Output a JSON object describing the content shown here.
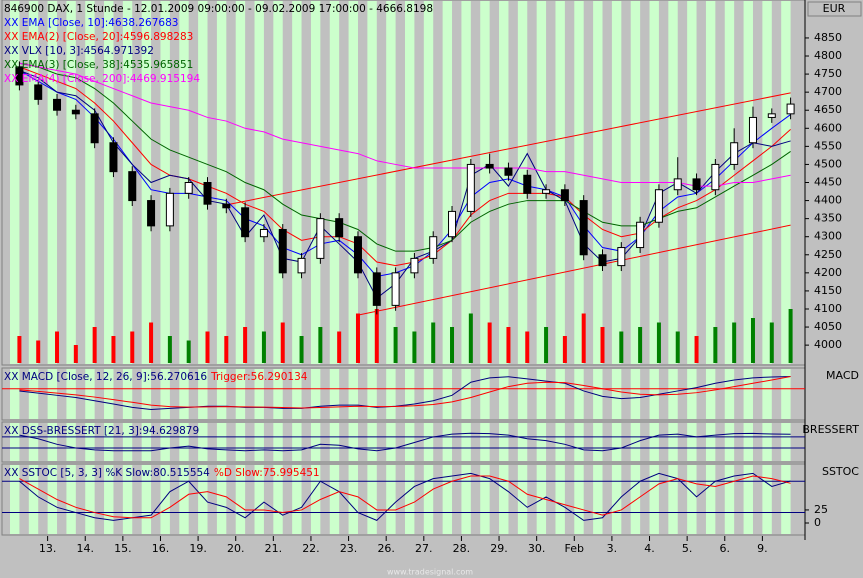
{
  "chart_data": [
    {
      "type": "candlestick",
      "title": "846900  DAX, 1 Stunde - 12.01.2009 09:00:00 - 09.02.2009 17:00:00 - 4666.8198",
      "currency": "EUR",
      "open": [
        4770,
        4720,
        4680,
        4650,
        4640,
        4560,
        4480,
        4400,
        4330,
        4420,
        4450,
        4390,
        4380,
        4300,
        4320,
        4200,
        4240,
        4350,
        4300,
        4200,
        4110,
        4200,
        4240,
        4300,
        4370,
        4500,
        4490,
        4470,
        4420,
        4430,
        4400,
        4250,
        4220,
        4270,
        4340,
        4430,
        4460,
        4430,
        4500,
        4560,
        4630,
        4640
      ],
      "high": [
        4785,
        4735,
        4695,
        4665,
        4655,
        4575,
        4495,
        4415,
        4435,
        4465,
        4465,
        4405,
        4395,
        4335,
        4335,
        4255,
        4365,
        4365,
        4315,
        4215,
        4215,
        4255,
        4315,
        4385,
        4515,
        4530,
        4505,
        4485,
        4445,
        4445,
        4415,
        4265,
        4285,
        4355,
        4445,
        4520,
        4475,
        4515,
        4600,
        4660,
        4655,
        4685
      ],
      "low": [
        4705,
        4665,
        4635,
        4625,
        4545,
        4465,
        4385,
        4315,
        4315,
        4405,
        4375,
        4365,
        4285,
        4285,
        4185,
        4185,
        4225,
        4285,
        4185,
        4085,
        4095,
        4185,
        4225,
        4285,
        4355,
        4475,
        4455,
        4405,
        4405,
        4385,
        4235,
        4205,
        4205,
        4255,
        4325,
        4415,
        4415,
        4415,
        4485,
        4545,
        4615,
        4625
      ],
      "close": [
        4720,
        4680,
        4650,
        4640,
        4560,
        4480,
        4400,
        4330,
        4420,
        4450,
        4390,
        4380,
        4300,
        4320,
        4200,
        4240,
        4350,
        4300,
        4200,
        4110,
        4200,
        4240,
        4300,
        4370,
        4500,
        4490,
        4470,
        4420,
        4430,
        4400,
        4250,
        4220,
        4270,
        4340,
        4430,
        4460,
        4430,
        4500,
        4560,
        4630,
        4640,
        4667
      ],
      "volume": [
        30,
        25,
        35,
        20,
        40,
        30,
        35,
        45,
        30,
        25,
        35,
        30,
        40,
        35,
        45,
        30,
        40,
        35,
        55,
        60,
        40,
        35,
        45,
        40,
        55,
        45,
        40,
        35,
        40,
        30,
        55,
        40,
        35,
        40,
        45,
        35,
        30,
        40,
        45,
        50,
        45,
        60
      ],
      "volume_ylim": [
        0,
        100
      ],
      "up_color": "#ffffff",
      "down_color": "#000000",
      "volume_up_color": "#008000",
      "volume_down_color": "#ff0000",
      "ylim": [
        3945,
        4955
      ],
      "yticks": [
        4000,
        4050,
        4100,
        4150,
        4200,
        4250,
        4300,
        4350,
        4400,
        4450,
        4500,
        4550,
        4600,
        4650,
        4700,
        4750,
        4800,
        4850
      ],
      "series": [
        {
          "name": "XX EMA [Close, 10]:4638.267683",
          "color": "#0000ff",
          "values": [
            4760,
            4730,
            4700,
            4680,
            4630,
            4570,
            4500,
            4430,
            4420,
            4420,
            4410,
            4400,
            4350,
            4330,
            4270,
            4250,
            4280,
            4290,
            4250,
            4190,
            4200,
            4220,
            4260,
            4320,
            4410,
            4450,
            4460,
            4440,
            4430,
            4410,
            4330,
            4270,
            4260,
            4300,
            4370,
            4410,
            4420,
            4460,
            4510,
            4560,
            4600,
            4638
          ]
        },
        {
          "name": "XX EMA(2) [Close, 20]:4596.898283",
          "color": "#ff0000",
          "values": [
            4770,
            4750,
            4730,
            4710,
            4670,
            4620,
            4560,
            4500,
            4470,
            4460,
            4440,
            4420,
            4390,
            4370,
            4320,
            4290,
            4300,
            4300,
            4280,
            4230,
            4220,
            4230,
            4250,
            4290,
            4360,
            4400,
            4420,
            4420,
            4420,
            4410,
            4360,
            4320,
            4300,
            4310,
            4350,
            4380,
            4400,
            4430,
            4470,
            4510,
            4550,
            4597
          ]
        },
        {
          "name": "XX VLX [10, 3]:4564.971392",
          "color": "#000080",
          "values": [
            4760,
            4740,
            4700,
            4690,
            4650,
            4560,
            4500,
            4450,
            4470,
            4460,
            4400,
            4390,
            4300,
            4360,
            4240,
            4230,
            4330,
            4280,
            4230,
            4130,
            4170,
            4240,
            4260,
            4290,
            4470,
            4500,
            4440,
            4530,
            4430,
            4400,
            4280,
            4230,
            4240,
            4300,
            4420,
            4450,
            4420,
            4480,
            4530,
            4560,
            4550,
            4565
          ]
        },
        {
          "name": "XX EMA(3) [Close, 38]:4535.965851",
          "color": "#006400",
          "values": [
            4780,
            4770,
            4750,
            4740,
            4710,
            4670,
            4620,
            4570,
            4540,
            4520,
            4500,
            4480,
            4450,
            4430,
            4390,
            4360,
            4350,
            4340,
            4320,
            4280,
            4260,
            4260,
            4270,
            4290,
            4340,
            4370,
            4390,
            4400,
            4400,
            4400,
            4370,
            4340,
            4330,
            4330,
            4350,
            4370,
            4380,
            4410,
            4440,
            4470,
            4500,
            4536
          ]
        },
        {
          "name": "XX EMA(4) [Close, 200]:4469.915194",
          "color": "#ff00ff",
          "values": [
            4780,
            4770,
            4760,
            4750,
            4730,
            4710,
            4690,
            4670,
            4660,
            4650,
            4630,
            4620,
            4600,
            4590,
            4570,
            4560,
            4550,
            4540,
            4530,
            4510,
            4500,
            4490,
            4490,
            4490,
            4490,
            4490,
            4490,
            4490,
            4480,
            4480,
            4470,
            4460,
            4450,
            4450,
            4450,
            4450,
            4440,
            4440,
            4450,
            4450,
            4460,
            4470
          ]
        }
      ],
      "channels": [
        {
          "color": "#ff0000",
          "x": [
            11.5,
            41.5
          ],
          "values": [
            4388,
            4698
          ]
        },
        {
          "color": "#ff0000",
          "x": [
            18.5,
            41.5
          ],
          "values": [
            4083,
            4332
          ]
        }
      ]
    },
    {
      "type": "line",
      "panel_label": "MACD",
      "ylim": [
        -143,
        95
      ],
      "levels": [
        0
      ],
      "level_color": "#ff0000",
      "series": [
        {
          "name": "XX MACD [Close, 12, 26, 9]:56.270616",
          "color": "#000080",
          "values": [
            -10,
            -20,
            -30,
            -40,
            -55,
            -70,
            -85,
            -95,
            -90,
            -85,
            -80,
            -80,
            -85,
            -85,
            -90,
            -90,
            -80,
            -75,
            -75,
            -85,
            -80,
            -70,
            -55,
            -30,
            30,
            50,
            55,
            45,
            35,
            25,
            -10,
            -35,
            -45,
            -40,
            -25,
            -10,
            5,
            25,
            40,
            50,
            54,
            56
          ]
        },
        {
          "name": "Trigger:56.290134",
          "color": "#ff0000",
          "values": [
            -5,
            -12,
            -20,
            -28,
            -38,
            -50,
            -62,
            -75,
            -82,
            -84,
            -83,
            -82,
            -83,
            -84,
            -86,
            -88,
            -86,
            -83,
            -80,
            -82,
            -81,
            -78,
            -72,
            -60,
            -40,
            -15,
            10,
            25,
            30,
            28,
            15,
            0,
            -15,
            -25,
            -28,
            -25,
            -18,
            -5,
            10,
            25,
            40,
            56
          ]
        }
      ]
    },
    {
      "type": "line",
      "panel_label": "BRESSERT",
      "ylim": [
        -56,
        161
      ],
      "levels": [
        80,
        20
      ],
      "level_color": "#000080",
      "series": [
        {
          "name": "XX DSS-BRESSERT [21, 3]:94.629879",
          "color": "#000080",
          "values": [
            90,
            70,
            40,
            20,
            10,
            5,
            5,
            5,
            20,
            30,
            15,
            10,
            5,
            10,
            5,
            10,
            40,
            35,
            15,
            5,
            20,
            50,
            80,
            95,
            100,
            98,
            90,
            70,
            60,
            40,
            10,
            5,
            20,
            60,
            90,
            95,
            80,
            90,
            98,
            99,
            96,
            94.6
          ]
        }
      ]
    },
    {
      "type": "line",
      "panel_label": "SSTOC",
      "ylim": [
        -23,
        113
      ],
      "yticks": [
        0,
        25
      ],
      "levels": [
        80,
        20
      ],
      "level_color": "#000080",
      "series": [
        {
          "name": "XX SSTOC [5, 3, 3] %K Slow:80.515554",
          "color": "#000080",
          "values": [
            80,
            50,
            30,
            20,
            10,
            5,
            10,
            15,
            60,
            80,
            40,
            30,
            10,
            40,
            15,
            30,
            80,
            60,
            20,
            5,
            40,
            70,
            85,
            90,
            95,
            85,
            60,
            30,
            50,
            30,
            5,
            10,
            50,
            80,
            95,
            85,
            50,
            80,
            90,
            95,
            70,
            80.5
          ]
        },
        {
          "name": "%D Slow:75.995451",
          "color": "#ff0000",
          "values": [
            85,
            65,
            45,
            30,
            20,
            12,
            10,
            10,
            30,
            55,
            60,
            50,
            25,
            25,
            20,
            25,
            45,
            60,
            50,
            25,
            25,
            40,
            65,
            80,
            90,
            90,
            80,
            55,
            45,
            35,
            25,
            15,
            25,
            50,
            75,
            85,
            75,
            70,
            80,
            90,
            85,
            76
          ]
        }
      ],
      "xticks": [
        {
          "value": 2,
          "label": "13."
        },
        {
          "value": 4,
          "label": "14."
        },
        {
          "value": 6,
          "label": "15."
        },
        {
          "value": 8,
          "label": "16."
        },
        {
          "value": 10,
          "label": "19."
        },
        {
          "value": 12,
          "label": "20."
        },
        {
          "value": 14,
          "label": "21."
        },
        {
          "value": 16,
          "label": "22."
        },
        {
          "value": 18,
          "label": "23."
        },
        {
          "value": 20,
          "label": "26."
        },
        {
          "value": 22,
          "label": "27."
        },
        {
          "value": 24,
          "label": "28."
        },
        {
          "value": 26,
          "label": "29."
        },
        {
          "value": 28,
          "label": "30."
        },
        {
          "value": 30,
          "label": "Feb"
        },
        {
          "value": 32,
          "label": "3."
        },
        {
          "value": 34,
          "label": "4."
        },
        {
          "value": 36,
          "label": "5."
        },
        {
          "value": 38,
          "label": "6."
        },
        {
          "value": 40,
          "label": "9."
        }
      ]
    }
  ],
  "footer": "www.tradesignal.com"
}
